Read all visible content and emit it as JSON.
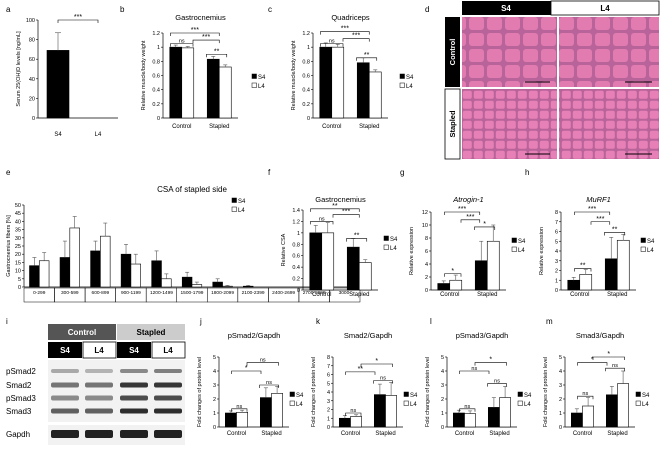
{
  "colors": {
    "s4": "#000000",
    "l4": "#ffffff",
    "he_bg": "#c27ca6",
    "he_fiber": "#e46aa6",
    "blot_bg": "#f2f2f2",
    "blot_band": "#222222"
  },
  "panel_letters": {
    "a": "a",
    "b": "b",
    "c": "c",
    "d": "d",
    "e": "e",
    "f": "f",
    "g": "g",
    "h": "h",
    "i": "i",
    "j": "j",
    "k": "k",
    "l": "l",
    "m": "m"
  },
  "legend": {
    "s4": "S4",
    "l4": "L4"
  },
  "sig": {
    "three": "***",
    "two": "**",
    "one": "*",
    "ns": "ns"
  },
  "panel_d": {
    "col_s4": "S4",
    "col_l4": "L4",
    "row_control": "Control",
    "row_stapled": "Stapled"
  },
  "panel_i": {
    "group_control": "Control",
    "group_stapled": "Stapled",
    "lanes": [
      "S4",
      "L4",
      "S4",
      "L4"
    ],
    "proteins": [
      "pSmad2",
      "Smad2",
      "pSmad3",
      "Smad3",
      "Gapdh"
    ]
  },
  "chart_data": [
    {
      "id": "a",
      "type": "bar",
      "ylabel": "Serum 25(OH)D levels [ng/mL]",
      "ylim": [
        0,
        100
      ],
      "yticks": [
        0,
        20,
        40,
        60,
        80,
        100
      ],
      "categories": [
        "S4",
        "L4"
      ],
      "values": [
        69,
        0
      ],
      "errors": [
        18,
        0
      ],
      "annotation": "***"
    },
    {
      "id": "b",
      "type": "bar",
      "title": "Gastrocnemius",
      "ylabel": "Relative muscle/body weight",
      "ylim": [
        0,
        1.2
      ],
      "yticks": [
        "0",
        "0.2",
        "0.4",
        "0.6",
        "0.8",
        "1",
        "1.2"
      ],
      "categories": [
        "Control",
        "Stapled"
      ],
      "series": [
        {
          "name": "S4",
          "values": [
            1.0,
            0.83
          ],
          "errors": [
            0.03,
            0.04
          ]
        },
        {
          "name": "L4",
          "values": [
            0.99,
            0.72
          ],
          "errors": [
            0.02,
            0.03
          ]
        }
      ]
    },
    {
      "id": "c",
      "type": "bar",
      "title": "Quadriceps",
      "ylabel": "Relative muscle/body weight",
      "ylim": [
        0,
        1.2
      ],
      "yticks": [
        "0",
        "0.2",
        "0.4",
        "0.6",
        "0.8",
        "1",
        "1.2"
      ],
      "categories": [
        "Control",
        "Stapled"
      ],
      "series": [
        {
          "name": "S4",
          "values": [
            1.0,
            0.78
          ],
          "errors": [
            0.06,
            0.07
          ]
        },
        {
          "name": "L4",
          "values": [
            1.0,
            0.65
          ],
          "errors": [
            0.04,
            0.03
          ]
        }
      ]
    },
    {
      "id": "e",
      "type": "bar",
      "title": "CSA of stapled side",
      "ylabel": "Gastrocnemius fibers [%]",
      "ylim": [
        0,
        50
      ],
      "yticks": [
        0,
        5,
        10,
        15,
        20,
        25,
        30,
        35,
        40,
        45,
        50
      ],
      "categories": [
        "0-299",
        "300-599",
        "600-899",
        "900-1199",
        "1200-1499",
        "1500-1799",
        "1800-2099",
        "2100-2399",
        "2400-2699",
        "2700-2999",
        "3000-"
      ],
      "series": [
        {
          "name": "S4",
          "values": [
            13,
            18,
            22,
            20,
            16,
            6,
            3,
            0.5,
            0,
            0,
            0
          ],
          "errors": [
            5,
            10,
            6,
            6,
            6,
            3,
            2,
            0.5,
            0,
            0,
            0
          ]
        },
        {
          "name": "L4",
          "values": [
            16,
            36,
            31,
            14,
            5,
            1.5,
            0.5,
            0,
            0,
            0,
            0
          ],
          "errors": [
            5,
            7,
            8,
            6,
            3,
            1.5,
            0.5,
            0,
            0,
            0,
            0
          ]
        }
      ]
    },
    {
      "id": "f",
      "type": "bar",
      "title": "Gastrocnemius",
      "ylabel": "Relative CSA",
      "ylim": [
        0,
        1.4
      ],
      "yticks": [
        "0",
        "0.2",
        "0.4",
        "0.6",
        "0.8",
        "1",
        "1.2",
        "1.4"
      ],
      "categories": [
        "Control",
        "Stapled"
      ],
      "series": [
        {
          "name": "S4",
          "values": [
            1.0,
            0.75
          ],
          "errors": [
            0.13,
            0.15
          ]
        },
        {
          "name": "L4",
          "values": [
            1.0,
            0.48
          ],
          "errors": [
            0.18,
            0.05
          ]
        }
      ]
    },
    {
      "id": "g",
      "type": "bar",
      "title": "Atrogin-1",
      "ylabel": "Relative expression",
      "ylim": [
        0,
        12
      ],
      "yticks": [
        0,
        2,
        4,
        6,
        8,
        10,
        12
      ],
      "categories": [
        "Control",
        "Stapled"
      ],
      "series": [
        {
          "name": "S4",
          "values": [
            1.0,
            4.5
          ],
          "errors": [
            0.4,
            3.0
          ]
        },
        {
          "name": "L4",
          "values": [
            1.5,
            7.5
          ],
          "errors": [
            0.8,
            2.5
          ]
        }
      ]
    },
    {
      "id": "h",
      "type": "bar",
      "title": "MuRF1",
      "ylabel": "Relative expression",
      "ylim": [
        0,
        8
      ],
      "yticks": [
        0,
        1,
        2,
        3,
        4,
        5,
        6,
        7,
        8
      ],
      "categories": [
        "Control",
        "Stapled"
      ],
      "series": [
        {
          "name": "S4",
          "values": [
            1.0,
            3.2
          ],
          "errors": [
            0.3,
            2.2
          ]
        },
        {
          "name": "L4",
          "values": [
            1.6,
            5.1
          ],
          "errors": [
            0.5,
            0.6
          ]
        }
      ]
    },
    {
      "id": "j",
      "type": "bar",
      "title": "pSmad2/Gapdh",
      "ylabel": "Fold changes of protein level",
      "ylim": [
        0,
        5
      ],
      "yticks": [
        0,
        1,
        2,
        3,
        4,
        5
      ],
      "categories": [
        "Control",
        "Stapled"
      ],
      "series": [
        {
          "name": "S4",
          "values": [
            1.0,
            2.1
          ],
          "errors": [
            0.15,
            0.7
          ]
        },
        {
          "name": "L4",
          "values": [
            1.05,
            2.4
          ],
          "errors": [
            0.15,
            0.5
          ]
        }
      ]
    },
    {
      "id": "k",
      "type": "bar",
      "title": "Smad2/Gapdh",
      "ylabel": "Fold changes of protein level",
      "ylim": [
        0,
        8
      ],
      "yticks": [
        0,
        1,
        2,
        3,
        4,
        5,
        6,
        7,
        8
      ],
      "categories": [
        "Control",
        "Stapled"
      ],
      "series": [
        {
          "name": "S4",
          "values": [
            1.0,
            3.7
          ],
          "errors": [
            0.3,
            1.2
          ]
        },
        {
          "name": "L4",
          "values": [
            1.2,
            3.6
          ],
          "errors": [
            0.2,
            1.5
          ]
        }
      ]
    },
    {
      "id": "l",
      "type": "bar",
      "title": "pSmad3/Gapdh",
      "ylabel": "Fold changes of protein level",
      "ylim": [
        0,
        5
      ],
      "yticks": [
        0,
        1,
        2,
        3,
        4,
        5
      ],
      "categories": [
        "Control",
        "Stapled"
      ],
      "series": [
        {
          "name": "S4",
          "values": [
            1.0,
            1.4
          ],
          "errors": [
            0.2,
            0.7
          ]
        },
        {
          "name": "L4",
          "values": [
            0.95,
            2.1
          ],
          "errors": [
            0.2,
            0.8
          ]
        }
      ]
    },
    {
      "id": "m",
      "type": "bar",
      "title": "Smad3/Gapdh",
      "ylabel": "Fold changes of protein level",
      "ylim": [
        0,
        5
      ],
      "yticks": [
        0,
        1,
        2,
        3,
        4,
        5
      ],
      "categories": [
        "Control",
        "Stapled"
      ],
      "series": [
        {
          "name": "S4",
          "values": [
            1.0,
            2.3
          ],
          "errors": [
            0.3,
            0.6
          ]
        },
        {
          "name": "L4",
          "values": [
            1.5,
            3.1
          ],
          "errors": [
            0.6,
            0.9
          ]
        }
      ]
    }
  ]
}
